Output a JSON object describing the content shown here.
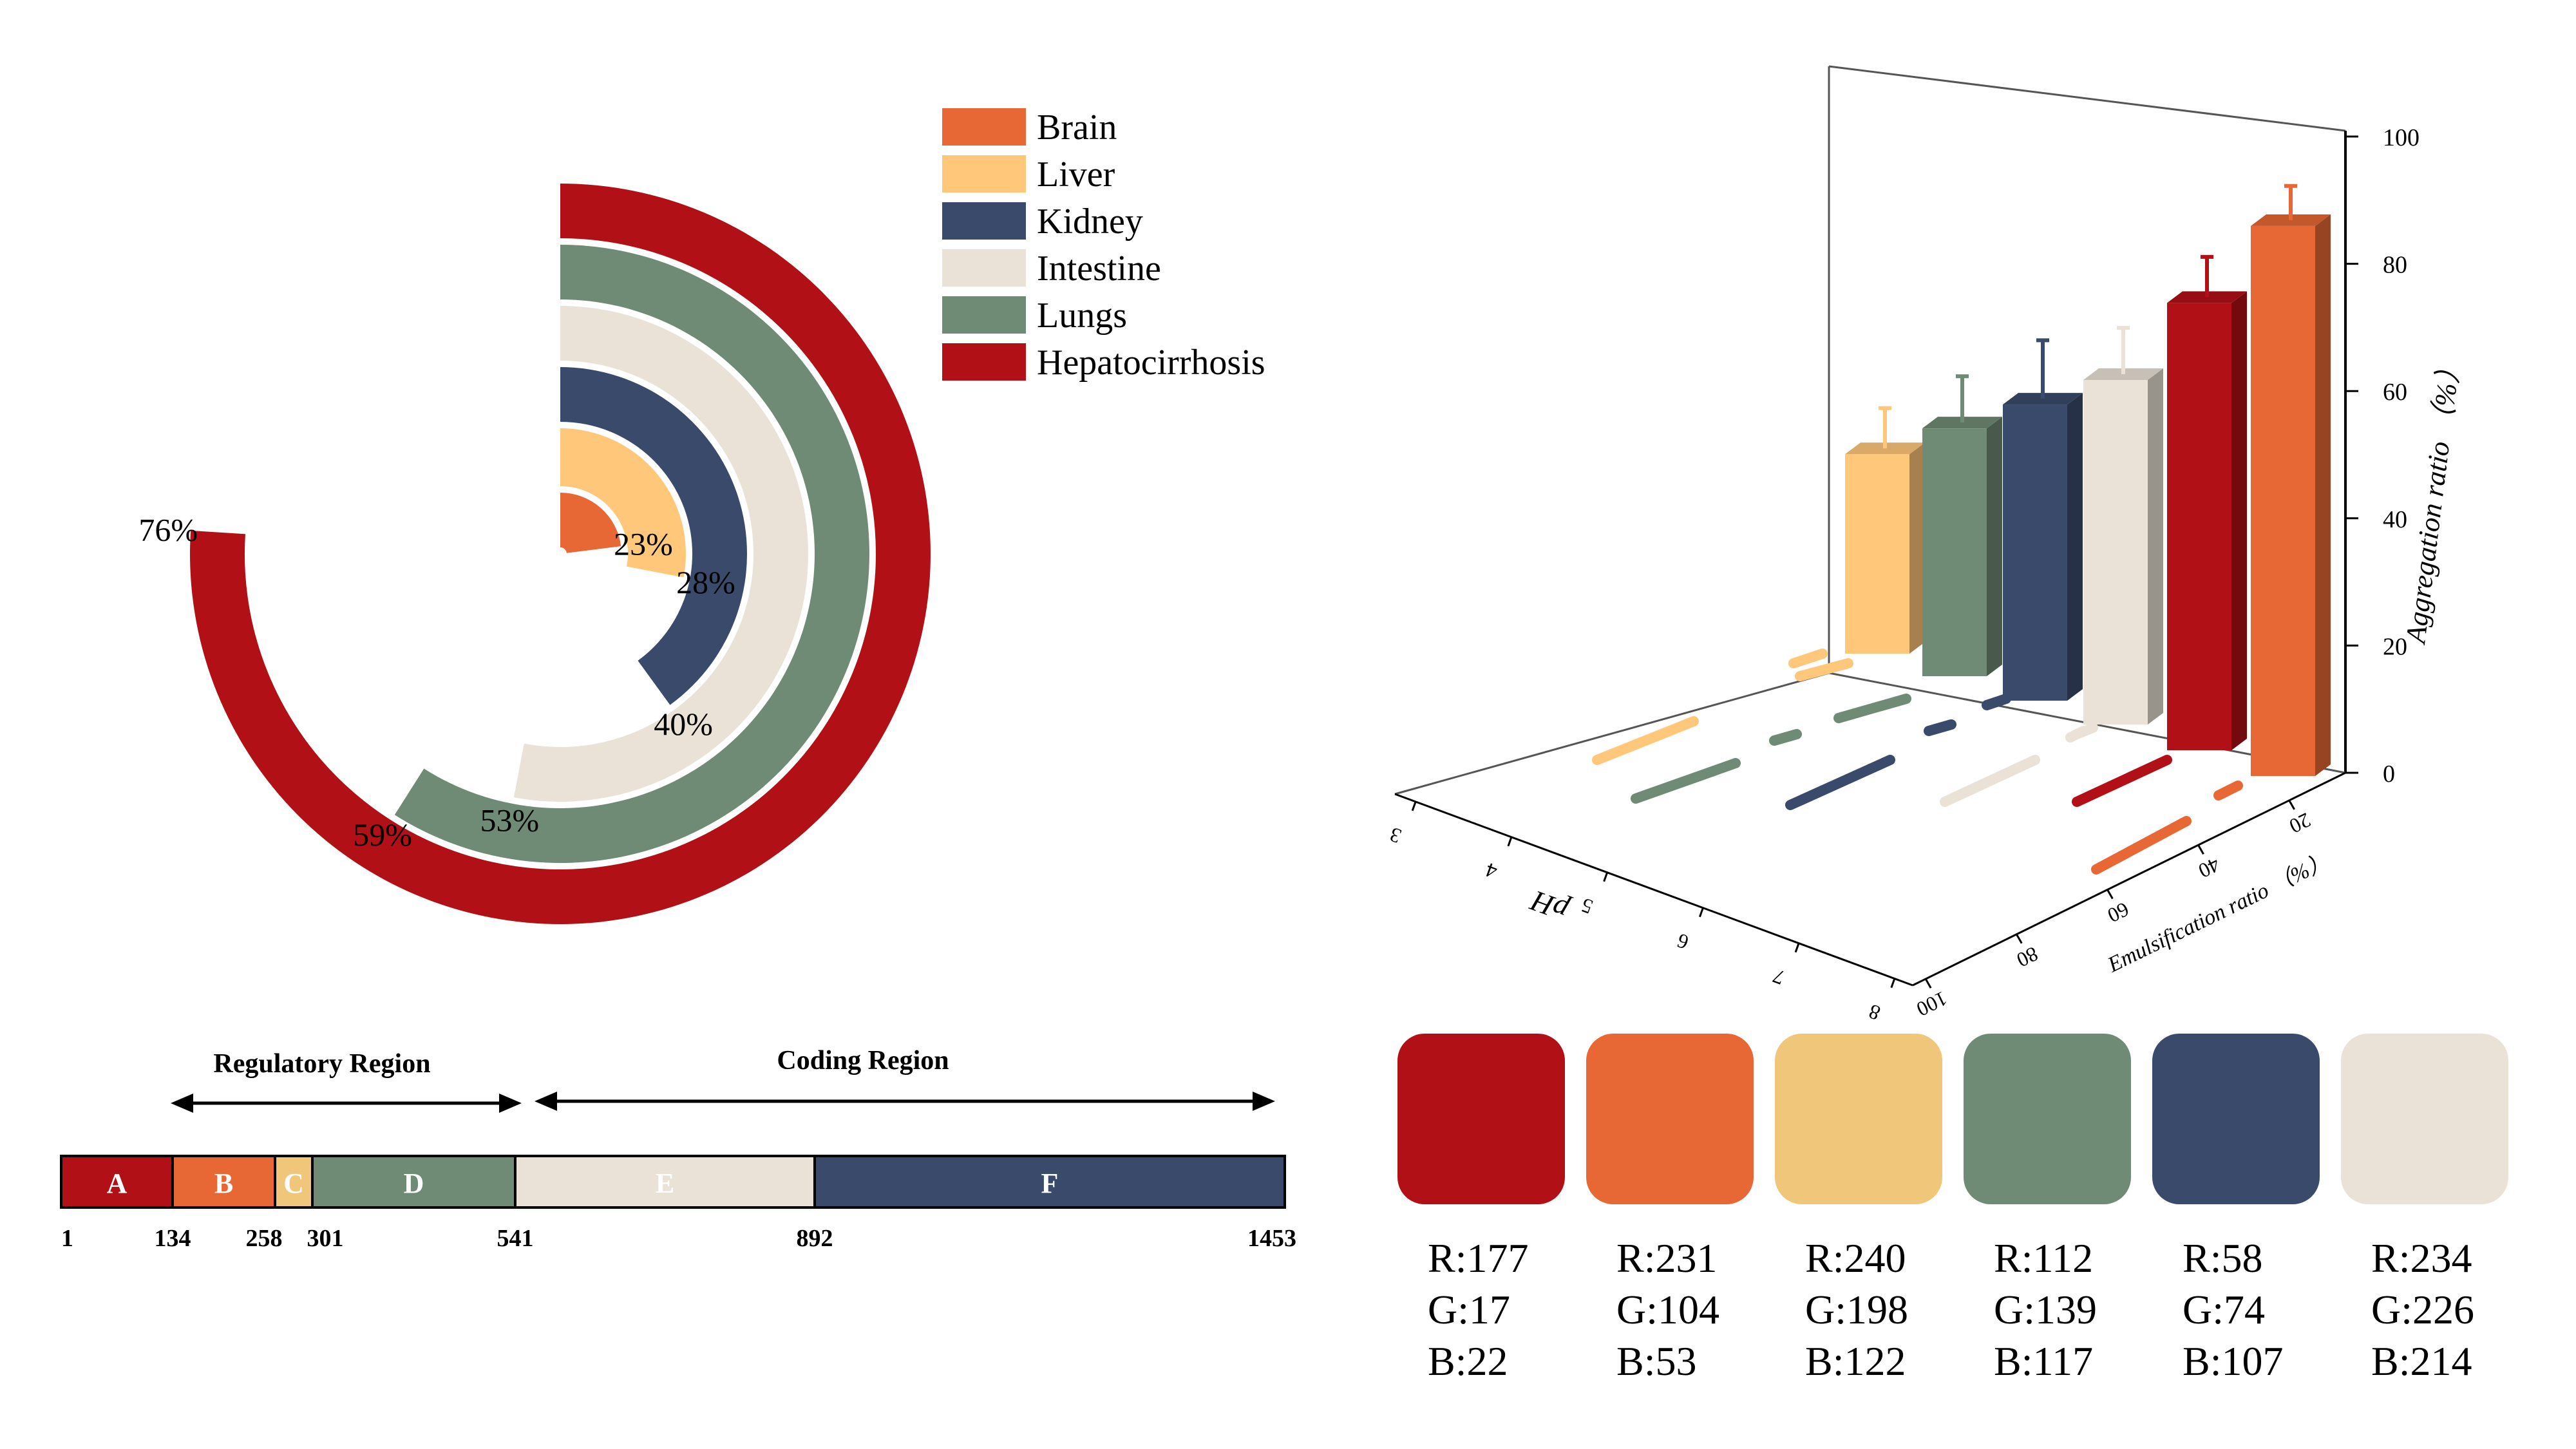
{
  "colors": {
    "brain": "#E76835",
    "liver": "#FFC77A",
    "kidney": "#3A4A6B",
    "intestine": "#EAE2D6",
    "lungs": "#708B75",
    "hepatocirrhosis": "#B11116",
    "pale_yellow": "#F0C67A"
  },
  "radial_chart": {
    "legend": [
      "Brain",
      "Liver",
      "Kidney",
      "Intestine",
      "Lungs",
      "Hepatocirrhosis"
    ]
  },
  "gene_map": {
    "regulatory_label": "Regulatory Region",
    "coding_label": "Coding Region",
    "segments": [
      {
        "label": "A",
        "start": 1,
        "end": 134,
        "color": "#B11116",
        "text_color": "#ffffff"
      },
      {
        "label": "B",
        "start": 134,
        "end": 258,
        "color": "#E76835",
        "text_color": "#ffffff"
      },
      {
        "label": "C",
        "start": 258,
        "end": 301,
        "color": "#F0C67A",
        "text_color": "#ffffff"
      },
      {
        "label": "D",
        "start": 301,
        "end": 541,
        "color": "#708B75",
        "text_color": "#ffffff"
      },
      {
        "label": "E",
        "start": 541,
        "end": 892,
        "color": "#EAE2D6",
        "text_color": "#ffffff"
      },
      {
        "label": "F",
        "start": 892,
        "end": 1453,
        "color": "#3A4A6B",
        "text_color": "#ffffff"
      }
    ],
    "positions": [
      "1",
      "134",
      "258",
      "301",
      "541",
      "892",
      "1453"
    ]
  },
  "palette": {
    "swatches": [
      {
        "color": "#B11116",
        "r": "R:177",
        "g": "G:17",
        "b": "B:22"
      },
      {
        "color": "#E76835",
        "r": "R:231",
        "g": "G:104",
        "b": "B:53"
      },
      {
        "color": "#F0C67A",
        "r": "R:240",
        "g": "G:198",
        "b": "B:122"
      },
      {
        "color": "#708B75",
        "r": "R:112",
        "g": "G:139",
        "b": "B:117"
      },
      {
        "color": "#3A4A6B",
        "r": "R:58",
        "g": "G:74",
        "b": "B:107"
      },
      {
        "color": "#EAE2D6",
        "r": "R:234",
        "g": "G:226",
        "b": "B:214"
      }
    ]
  },
  "chart_data": [
    {
      "type": "radial-bar",
      "categories": [
        "Brain",
        "Liver",
        "Kidney",
        "Intestine",
        "Lungs",
        "Hepatocirrhosis"
      ],
      "values": [
        23,
        28,
        40,
        53,
        59,
        76
      ],
      "value_labels": [
        "23%",
        "28%",
        "40%",
        "53%",
        "59%",
        "76%"
      ],
      "legend": "top-right"
    },
    {
      "type": "bar3d",
      "zlabel": "Aggregation ratio （%）",
      "ylabel": "Emulsification ratio （%）",
      "xlabel": "pH",
      "z_ticks": [
        "0",
        "20",
        "40",
        "60",
        "80",
        "100"
      ],
      "zlim": [
        0,
        100
      ],
      "ph_ticks": [
        "3",
        "4",
        "5",
        "6",
        "7",
        "8"
      ],
      "emul_ticks": [
        "20",
        "40",
        "60",
        "80",
        "100"
      ],
      "bars": [
        {
          "series": "Liver",
          "value": 33,
          "error": 4
        },
        {
          "series": "Lungs",
          "value": 41,
          "error": 5
        },
        {
          "series": "Kidney",
          "value": 49,
          "error": 7
        },
        {
          "series": "Intestine",
          "value": 57,
          "error": 5
        },
        {
          "series": "Hepatocirrhosis",
          "value": 74,
          "error": 4
        },
        {
          "series": "Brain",
          "value": 91,
          "error": 3
        }
      ]
    }
  ]
}
